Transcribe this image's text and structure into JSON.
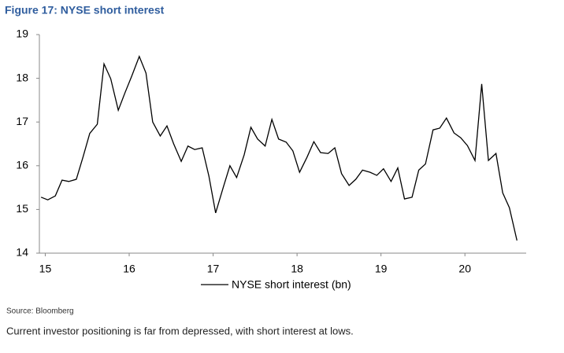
{
  "chart_data": {
    "type": "line",
    "title": "Figure 17: NYSE short interest",
    "source": "Source: Bloomberg",
    "caption": "Current investor positioning is far from depressed, with short interest at lows.",
    "x": [
      14.95,
      15.03,
      15.12,
      15.2,
      15.28,
      15.37,
      15.45,
      15.53,
      15.62,
      15.7,
      15.78,
      15.87,
      15.95,
      16.03,
      16.12,
      16.2,
      16.28,
      16.37,
      16.45,
      16.53,
      16.62,
      16.7,
      16.78,
      16.87,
      16.95,
      17.03,
      17.12,
      17.2,
      17.28,
      17.37,
      17.45,
      17.53,
      17.62,
      17.7,
      17.78,
      17.87,
      17.95,
      18.03,
      18.12,
      18.2,
      18.28,
      18.37,
      18.45,
      18.53,
      18.62,
      18.7,
      18.78,
      18.87,
      18.95,
      19.03,
      19.12,
      19.2,
      19.28,
      19.37,
      19.45,
      19.53,
      19.62,
      19.7,
      19.78,
      19.87,
      19.95,
      20.03,
      20.12,
      20.2,
      20.28,
      20.37,
      20.45,
      20.53,
      20.62
    ],
    "series": [
      {
        "name": "NYSE short interest (bn)",
        "color": "#000000",
        "values": [
          15.28,
          15.22,
          15.31,
          15.67,
          15.64,
          15.69,
          16.2,
          16.74,
          16.95,
          18.33,
          17.99,
          17.27,
          17.67,
          18.05,
          18.5,
          18.12,
          17.0,
          16.68,
          16.91,
          16.5,
          16.1,
          16.45,
          16.37,
          16.41,
          15.76,
          14.92,
          15.5,
          16.0,
          15.73,
          16.25,
          16.88,
          16.61,
          16.45,
          17.06,
          16.61,
          16.54,
          16.34,
          15.85,
          16.2,
          16.55,
          16.3,
          16.28,
          16.41,
          15.82,
          15.55,
          15.69,
          15.9,
          15.85,
          15.78,
          15.93,
          15.64,
          15.95,
          15.24,
          15.28,
          15.9,
          16.04,
          16.82,
          16.86,
          17.09,
          16.75,
          16.64,
          16.46,
          16.12,
          17.87,
          16.12,
          16.28,
          15.38,
          15.04,
          14.29
        ]
      }
    ],
    "xlim": [
      14.93,
      20.73
    ],
    "xticks": [
      15,
      16,
      17,
      18,
      19,
      20
    ],
    "ylim": [
      14,
      19
    ],
    "yticks": [
      14,
      15,
      16,
      17,
      18,
      19
    ]
  }
}
